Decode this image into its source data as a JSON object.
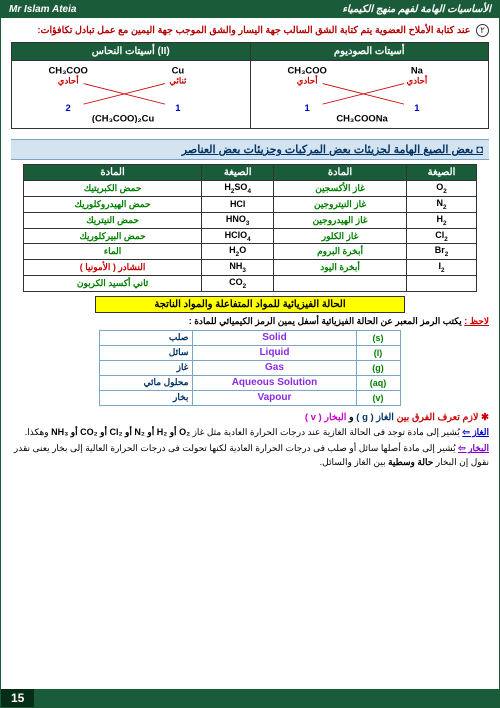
{
  "header": {
    "left": "Mr Islam Ateia",
    "right": "الأساسيات الهامة لفهم منهج الكيمياء"
  },
  "rule": {
    "num": "٢",
    "text": "عند كتابة الأملاح العضوية يتم كتابة الشق السالب جهة اليسار والشق الموجب جهة اليمين مع عمل تبادل تكافؤات:"
  },
  "salts": {
    "headers": [
      "أسيتات النحاس (II)",
      "أسيتات الصوديوم"
    ],
    "copper": {
      "anion": "CH₃COO",
      "cation": "Cu",
      "an_ar": "أحادي",
      "cat_ar": "ثنائي",
      "an_n": "2",
      "cat_n": "1",
      "result": "(CH₃COO)₂Cu"
    },
    "sodium": {
      "anion": "CH₃COO",
      "cation": "Na",
      "an_ar": "أحادي",
      "cat_ar": "أحادي",
      "an_n": "1",
      "cat_n": "1",
      "result": "CH₃COONa"
    }
  },
  "section_title": "◘ بعض الصيغ الهامة لجزيئات بعض المركبات وجزيئات بعض العناصر",
  "formula_headers": [
    "المادة",
    "الصيغة",
    "المادة",
    "الصيغة"
  ],
  "formulas": [
    {
      "m1": "حمض الكبريتيك",
      "f1": "H₂SO₄",
      "m2": "غاز الأكسجين",
      "f2": "O₂"
    },
    {
      "m1": "حمض الهيدروكلوريك",
      "f1": "HCl",
      "m2": "غاز النيتروجين",
      "f2": "N₂"
    },
    {
      "m1": "حمض النيتريك",
      "f1": "HNO₃",
      "m2": "غاز الهيدروجين",
      "f2": "H₂"
    },
    {
      "m1": "حمض البيركلوريك",
      "f1": "HClO₄",
      "m2": "غاز الكلور",
      "f2": "Cl₂"
    },
    {
      "m1": "الماء",
      "f1": "H₂O",
      "m2": "أبخرة البروم",
      "f2": "Br₂"
    },
    {
      "m1": "النشادر ( الأمونيا )",
      "m1_color": "#cc0000",
      "f1": "NH₃",
      "m2": "أبخرة اليود",
      "f2": "I₂"
    },
    {
      "m1": "ثاني أكسيد الكربون",
      "f1": "CO₂",
      "m2": "",
      "f2": ""
    }
  ],
  "highlight": "الحالة الفيزيائية للمواد المتفاعلة والمواد الناتجة",
  "note": {
    "label": "لاحظ :",
    "text": "يكتب الرمز المعبر عن الحالة الفيزيائية أسفل يمين الرمز الكيميائي للمادة :"
  },
  "states": [
    {
      "ar": "صلب",
      "en": "Solid",
      "sym": "(s)"
    },
    {
      "ar": "سائل",
      "en": "Liquid",
      "sym": "(l)"
    },
    {
      "ar": "غاز",
      "en": "Gas",
      "sym": "(g)"
    },
    {
      "ar": "محلول مائي",
      "en": "Aqueous Solution",
      "sym": "(aq)"
    },
    {
      "ar": "بخار",
      "en": "Vapour",
      "sym": "(v)"
    }
  ],
  "diff": {
    "pre": "✱ لازم تعرف الفرق بين ",
    "gas": "الغاز ( g )",
    "and": " و ",
    "vap": "البخار ( v )"
  },
  "gas_para": {
    "term": "الغاز ⇦",
    "text1": "يُشير إلى مادة توجد فى الحالة الغازية عند درجات الحرارة العادية مثل غاز ",
    "ex": "O₂ أو H₂ أو N₂ أو Cl₂ أو CO₂ أو NH₃",
    "text2": " وهكذا."
  },
  "vap_para": {
    "term": "البخار ⇦",
    "text1": "يُشير إلى مادة أصلها سائل أو صلب فى درجات الحرارة العادية لكنها تحولت فى درجات الحرارة العالية إلى بخار يعنى نقدر نقول إن البخار ",
    "bold": "حالة وسطية",
    "text2": " بين الغاز والسائل."
  },
  "page": "15"
}
